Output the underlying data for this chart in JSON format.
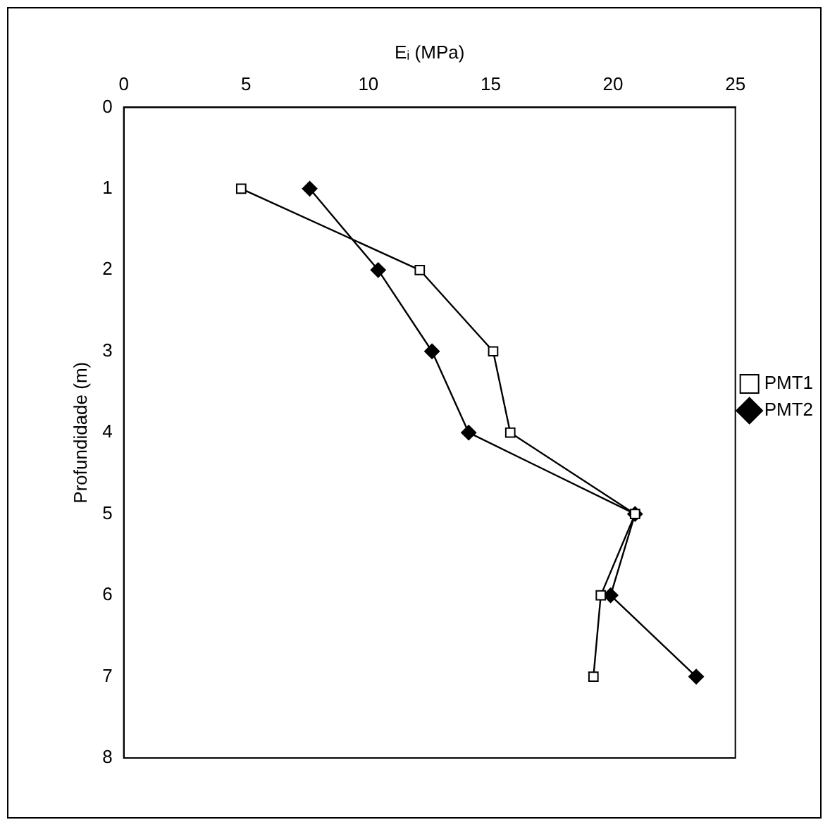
{
  "chart_data": {
    "type": "line",
    "xlabel": "Eᵢ (MPa)",
    "ylabel": "Profundidade (m)",
    "xlim": [
      0,
      25
    ],
    "xticks": [
      0,
      5,
      10,
      15,
      20,
      25
    ],
    "ylim": [
      8,
      0
    ],
    "yticks": [
      0,
      1,
      2,
      3,
      4,
      5,
      6,
      7,
      8
    ],
    "grid": false,
    "legend": "right",
    "series": [
      {
        "name": "PMT1",
        "color": "#000000",
        "marker": "square",
        "x": [
          4.8,
          12.1,
          15.1,
          15.8,
          20.9,
          19.5,
          19.2
        ],
        "values": [
          1,
          2,
          3,
          4,
          5,
          6,
          7
        ]
      },
      {
        "name": "PMT2",
        "color": "#000000",
        "marker": "diamond",
        "x": [
          7.6,
          10.4,
          12.6,
          14.1,
          20.9,
          19.9,
          23.4
        ],
        "values": [
          1,
          2,
          3,
          4,
          5,
          6,
          7
        ]
      }
    ]
  }
}
